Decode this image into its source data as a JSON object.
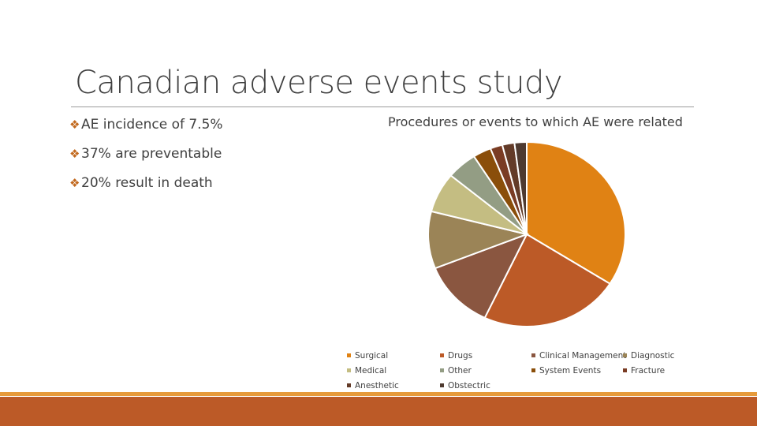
{
  "slide": {
    "title": "Canadian adverse events study",
    "bullet_mark": "❖",
    "bullets": [
      "AE incidence of 7.5%",
      "37% are preventable",
      "20% result in death"
    ]
  },
  "chart_data": {
    "type": "pie",
    "title": "Procedures or events to which AE were related",
    "legend_position": "bottom",
    "categories": [
      "Surgical",
      "Drugs",
      "Clinical Management",
      "Diagnostic",
      "Medical",
      "Other",
      "System Events",
      "Fracture",
      "Anesthetic",
      "Obstectric"
    ],
    "values": [
      34,
      23,
      12,
      10,
      7,
      5,
      3,
      2,
      2,
      2
    ],
    "colors": [
      "#e08214",
      "#bc5a27",
      "#8a5640",
      "#9b8457",
      "#c4bd82",
      "#939d84",
      "#8a4e0a",
      "#7a3c24",
      "#633b28",
      "#4e3a30"
    ],
    "legend_rows": [
      [
        "Surgical",
        "Drugs",
        "Clinical Management",
        "Diagnostic"
      ],
      [
        "Medical",
        "Other",
        "System Events",
        "Fracture"
      ],
      [
        "Anesthetic",
        "Obstectric"
      ]
    ]
  }
}
